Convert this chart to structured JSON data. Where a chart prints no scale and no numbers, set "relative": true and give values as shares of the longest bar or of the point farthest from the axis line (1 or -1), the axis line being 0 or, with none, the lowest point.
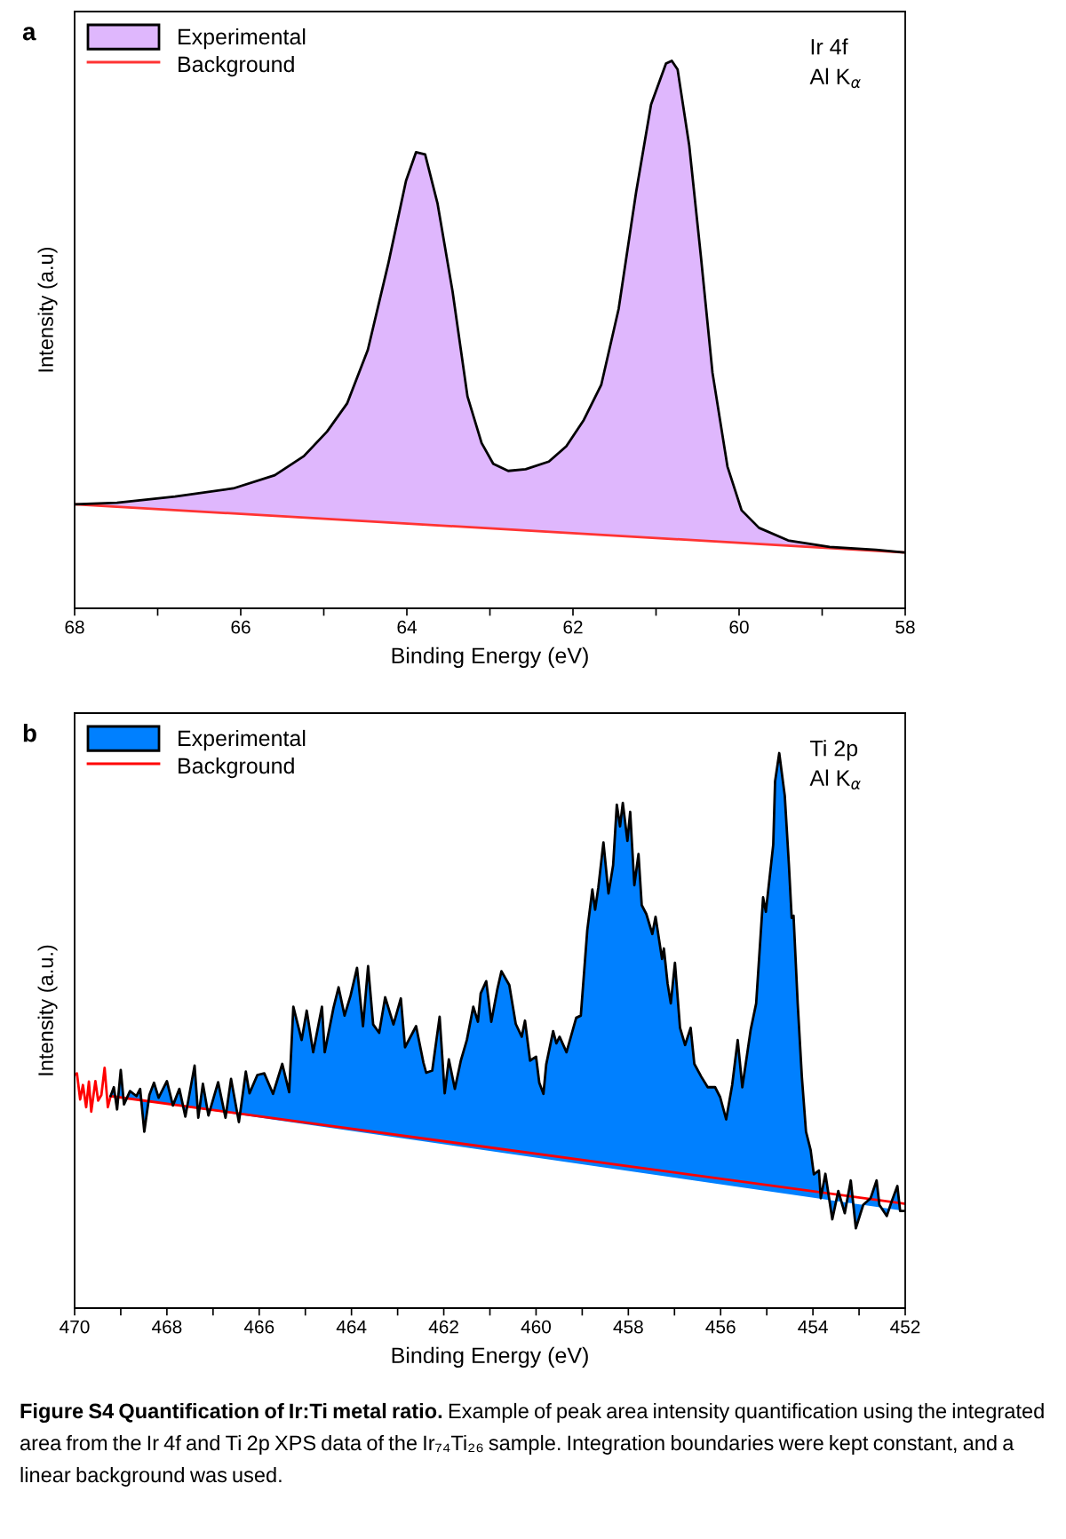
{
  "chart_data": [
    {
      "type": "area",
      "relative": true,
      "xlabel": "Binding Energy (eV)",
      "ylabel": "Intensity (a.u)",
      "xlim": [
        68,
        58
      ],
      "xticks": [
        68,
        {
          "value": 67,
          "label": null
        },
        66,
        {
          "value": 65,
          "label": null
        },
        64,
        {
          "value": 63,
          "label": null
        },
        62,
        {
          "value": 61,
          "label": null
        },
        60,
        {
          "value": 59,
          "label": null
        },
        58
      ],
      "tick_labels": "x",
      "legend": "top left",
      "grid": false,
      "annotations": [
        "a",
        "Ir 4f",
        "Al K$_{α}$"
      ],
      "series": [
        {
          "name": "Experimental",
          "type": "area",
          "color": "#dfb7fd",
          "x": [
            68.0,
            67.49,
            66.79,
            66.09,
            65.59,
            65.24,
            64.96,
            64.72,
            64.47,
            64.22,
            64.01,
            63.89,
            63.78,
            63.63,
            63.45,
            63.27,
            63.1,
            62.96,
            62.78,
            62.57,
            62.29,
            62.08,
            61.87,
            61.66,
            61.45,
            61.24,
            61.06,
            60.88,
            60.81,
            60.74,
            60.6,
            60.46,
            60.32,
            60.14,
            59.97,
            59.76,
            59.41,
            58.91,
            58.35,
            58.0
          ],
          "values": [
            0.19,
            0.193,
            0.204,
            0.219,
            0.243,
            0.278,
            0.323,
            0.374,
            0.472,
            0.632,
            0.781,
            0.833,
            0.829,
            0.739,
            0.579,
            0.387,
            0.302,
            0.264,
            0.251,
            0.254,
            0.268,
            0.296,
            0.344,
            0.408,
            0.547,
            0.76,
            0.92,
            0.995,
            1.0,
            0.984,
            0.845,
            0.643,
            0.43,
            0.259,
            0.179,
            0.147,
            0.124,
            0.112,
            0.107,
            0.102
          ]
        },
        {
          "name": "Background",
          "type": "line",
          "color": "#ff3333",
          "x": [
            68.0,
            58.0
          ],
          "values": [
            0.19,
            0.102
          ]
        }
      ]
    },
    {
      "type": "area",
      "relative": true,
      "xlabel": "Binding Energy (eV)",
      "ylabel": "Intensity (a.u.)",
      "xlim": [
        470,
        452
      ],
      "xticks": [
        470,
        {
          "value": 469,
          "label": null
        },
        468,
        {
          "value": 467,
          "label": null
        },
        466,
        {
          "value": 465,
          "label": null
        },
        464,
        {
          "value": 463,
          "label": null
        },
        462,
        {
          "value": 461,
          "label": null
        },
        460,
        {
          "value": 459,
          "label": null
        },
        458,
        {
          "value": 457,
          "label": null
        },
        456,
        {
          "value": 455,
          "label": null
        },
        454,
        {
          "value": 453,
          "label": null
        },
        452
      ],
      "tick_labels": "x",
      "legend": "top left",
      "grid": false,
      "annotations": [
        "b",
        "Ti 2p",
        "Al K$_{α}$",
        "Figure S4 Quantification of Ir:Ti metal ratio.",
        "Example of peak area intensity quantification using the integrated area from the Ir 4f and Ti 2p XPS data of the Ir₇₄Ti₂₆ sample. Integration boundaries were kept constant, and a linear background was used."
      ],
      "series": [
        {
          "name": "Experimental",
          "type": "area",
          "color": "#0080ff",
          "x": [
            469.22,
            469.15,
            469.08,
            469.0,
            468.93,
            468.8,
            468.66,
            468.58,
            468.49,
            468.38,
            468.28,
            468.18,
            468.0,
            467.87,
            467.73,
            467.6,
            467.4,
            467.32,
            467.22,
            467.1,
            466.89,
            466.73,
            466.61,
            466.44,
            466.29,
            466.21,
            466.04,
            465.89,
            465.7,
            465.5,
            465.35,
            465.26,
            465.08,
            464.97,
            464.83,
            464.64,
            464.58,
            464.39,
            464.28,
            464.15,
            464.02,
            463.88,
            463.75,
            463.64,
            463.53,
            463.4,
            463.27,
            463.09,
            462.93,
            462.84,
            462.6,
            462.44,
            462.38,
            462.25,
            462.09,
            461.98,
            461.89,
            461.76,
            461.63,
            461.5,
            461.36,
            461.26,
            461.2,
            461.08,
            460.97,
            460.84,
            460.75,
            460.58,
            460.44,
            460.31,
            460.24,
            460.13,
            460.0,
            459.93,
            459.84,
            459.78,
            459.63,
            459.56,
            459.49,
            459.34,
            459.13,
            459.03,
            458.89,
            458.78,
            458.72,
            458.65,
            458.54,
            458.43,
            458.33,
            458.25,
            458.18,
            458.12,
            458.02,
            457.96,
            457.87,
            457.78,
            457.71,
            457.61,
            457.48,
            457.41,
            457.27,
            457.23,
            457.15,
            457.08,
            456.99,
            456.88,
            456.77,
            456.65,
            456.57,
            456.42,
            456.28,
            456.12,
            456.01,
            455.88,
            455.75,
            455.63,
            455.53,
            455.35,
            455.23,
            455.08,
            455.02,
            454.86,
            454.82,
            454.73,
            454.61,
            454.52,
            454.46,
            454.42,
            454.33,
            454.24,
            454.15,
            454.05,
            453.98,
            453.87,
            453.83,
            453.73,
            453.58,
            453.45,
            453.31,
            453.18,
            453.07,
            452.91,
            452.75,
            452.62,
            452.56,
            452.4,
            452.29,
            452.17,
            452.11,
            452.0
          ],
          "values": [
            0.382,
            0.398,
            0.358,
            0.429,
            0.367,
            0.391,
            0.382,
            0.395,
            0.318,
            0.384,
            0.406,
            0.379,
            0.409,
            0.365,
            0.395,
            0.345,
            0.437,
            0.343,
            0.404,
            0.347,
            0.407,
            0.343,
            0.413,
            0.335,
            0.426,
            0.387,
            0.42,
            0.423,
            0.386,
            0.44,
            0.389,
            0.543,
            0.483,
            0.536,
            0.461,
            0.543,
            0.461,
            0.541,
            0.578,
            0.527,
            0.563,
            0.613,
            0.508,
            0.616,
            0.511,
            0.496,
            0.56,
            0.511,
            0.558,
            0.47,
            0.508,
            0.442,
            0.424,
            0.428,
            0.525,
            0.387,
            0.448,
            0.395,
            0.446,
            0.483,
            0.543,
            0.516,
            0.567,
            0.589,
            0.516,
            0.574,
            0.607,
            0.582,
            0.512,
            0.489,
            0.518,
            0.446,
            0.453,
            0.406,
            0.386,
            0.439,
            0.499,
            0.477,
            0.489,
            0.461,
            0.523,
            0.527,
            0.681,
            0.754,
            0.718,
            0.758,
            0.839,
            0.747,
            0.798,
            0.907,
            0.868,
            0.91,
            0.842,
            0.894,
            0.762,
            0.818,
            0.726,
            0.71,
            0.674,
            0.705,
            0.629,
            0.648,
            0.585,
            0.549,
            0.622,
            0.505,
            0.474,
            0.505,
            0.44,
            0.417,
            0.398,
            0.398,
            0.38,
            0.34,
            0.402,
            0.483,
            0.398,
            0.501,
            0.549,
            0.74,
            0.714,
            0.835,
            0.949,
            1.0,
            0.923,
            0.798,
            0.703,
            0.707,
            0.549,
            0.417,
            0.318,
            0.285,
            0.241,
            0.248,
            0.198,
            0.242,
            0.16,
            0.211,
            0.171,
            0.23,
            0.144,
            0.186,
            0.198,
            0.23,
            0.186,
            0.166,
            0.193,
            0.22,
            0.175,
            0.175
          ]
        },
        {
          "name": "Background",
          "type": "line",
          "color": "#ff0000",
          "x": [
            470.0,
            469.95,
            469.88,
            469.82,
            469.75,
            469.69,
            469.64,
            469.55,
            469.49,
            469.42,
            469.35,
            469.28,
            469.22,
            452.0
          ],
          "values": [
            0.42,
            0.423,
            0.376,
            0.402,
            0.362,
            0.408,
            0.354,
            0.409,
            0.374,
            0.384,
            0.433,
            0.362,
            0.382,
            0.188
          ]
        }
      ]
    }
  ]
}
